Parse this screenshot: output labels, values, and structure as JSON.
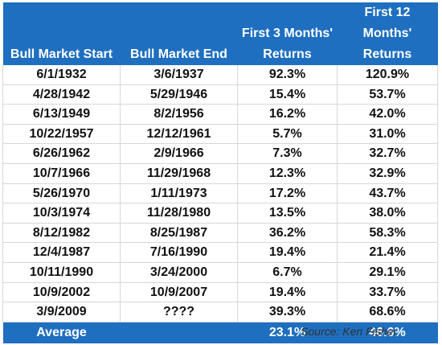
{
  "headers": {
    "start": "Bull Market Start",
    "end": "Bull Market End",
    "r3_top": "First 3 Months'",
    "r3_bottom": "Returns",
    "r12_top": "First 12 Months'",
    "r12_bottom": "Returns"
  },
  "rows": [
    {
      "start": "6/1/1932",
      "end": "3/6/1937",
      "r3": "92.3%",
      "r12": "120.9%"
    },
    {
      "start": "4/28/1942",
      "end": "5/29/1946",
      "r3": "15.4%",
      "r12": "53.7%"
    },
    {
      "start": "6/13/1949",
      "end": "8/2/1956",
      "r3": "16.2%",
      "r12": "42.0%"
    },
    {
      "start": "10/22/1957",
      "end": "12/12/1961",
      "r3": "5.7%",
      "r12": "31.0%"
    },
    {
      "start": "6/26/1962",
      "end": "2/9/1966",
      "r3": "7.3%",
      "r12": "32.7%"
    },
    {
      "start": "10/7/1966",
      "end": "11/29/1968",
      "r3": "12.3%",
      "r12": "32.9%"
    },
    {
      "start": "5/26/1970",
      "end": "1/11/1973",
      "r3": "17.2%",
      "r12": "43.7%"
    },
    {
      "start": "10/3/1974",
      "end": "11/28/1980",
      "r3": "13.5%",
      "r12": "38.0%"
    },
    {
      "start": "8/12/1982",
      "end": "8/25/1987",
      "r3": "36.2%",
      "r12": "58.3%"
    },
    {
      "start": "12/4/1987",
      "end": "7/16/1990",
      "r3": "19.4%",
      "r12": "21.4%"
    },
    {
      "start": "10/11/1990",
      "end": "3/24/2000",
      "r3": "6.7%",
      "r12": "29.1%"
    },
    {
      "start": "10/9/2002",
      "end": "10/9/2007",
      "r3": "19.4%",
      "r12": "33.7%"
    },
    {
      "start": "3/9/2009",
      "end": "????",
      "r3": "39.3%",
      "r12": "68.6%"
    }
  ],
  "footer": {
    "label": "Average",
    "r3": "23.1%",
    "r12": "46.6%"
  },
  "source": "Source: Ken Fisher",
  "colors": {
    "header_bg": "#1f6fc0",
    "header_text": "#ffffff",
    "grid": "#d7d7d7"
  }
}
